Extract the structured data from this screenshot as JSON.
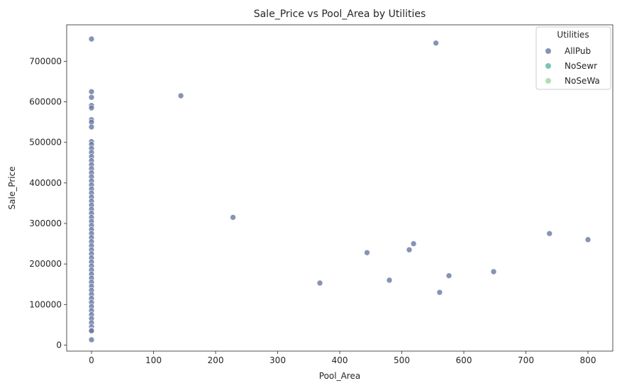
{
  "chart_data": {
    "type": "scatter",
    "title": "Sale_Price vs Pool_Area by Utilities",
    "xlabel": "Pool_Area",
    "ylabel": "Sale_Price",
    "xlim": [
      -40,
      840
    ],
    "ylim": [
      -15000,
      790000
    ],
    "xticks": [
      0,
      100,
      200,
      300,
      400,
      500,
      600,
      700,
      800
    ],
    "yticks": [
      0,
      100000,
      200000,
      300000,
      400000,
      500000,
      600000,
      700000
    ],
    "grid": false,
    "legend": {
      "title": "Utilities",
      "placement": "top-right"
    },
    "series": [
      {
        "name": "AllPub",
        "color": "#6878a3",
        "points": [
          [
            0,
            755000
          ],
          [
            0,
            625000
          ],
          [
            0,
            611000
          ],
          [
            0,
            591000
          ],
          [
            0,
            585000
          ],
          [
            0,
            556000
          ],
          [
            0,
            550000
          ],
          [
            0,
            538000
          ],
          [
            0,
            502000
          ],
          [
            0,
            495000
          ],
          [
            0,
            485000
          ],
          [
            0,
            475000
          ],
          [
            0,
            465000
          ],
          [
            0,
            455000
          ],
          [
            0,
            445000
          ],
          [
            0,
            435000
          ],
          [
            0,
            425000
          ],
          [
            0,
            415000
          ],
          [
            0,
            405000
          ],
          [
            0,
            395000
          ],
          [
            0,
            385000
          ],
          [
            0,
            375000
          ],
          [
            0,
            365000
          ],
          [
            0,
            355000
          ],
          [
            0,
            345000
          ],
          [
            0,
            335000
          ],
          [
            0,
            325000
          ],
          [
            0,
            315000
          ],
          [
            0,
            305000
          ],
          [
            0,
            295000
          ],
          [
            0,
            285000
          ],
          [
            0,
            275000
          ],
          [
            0,
            265000
          ],
          [
            0,
            255000
          ],
          [
            0,
            245000
          ],
          [
            0,
            235000
          ],
          [
            0,
            225000
          ],
          [
            0,
            215000
          ],
          [
            0,
            205000
          ],
          [
            0,
            195000
          ],
          [
            0,
            185000
          ],
          [
            0,
            175000
          ],
          [
            0,
            165000
          ],
          [
            0,
            155000
          ],
          [
            0,
            145000
          ],
          [
            0,
            135000
          ],
          [
            0,
            125000
          ],
          [
            0,
            115000
          ],
          [
            0,
            105000
          ],
          [
            0,
            95000
          ],
          [
            0,
            85000
          ],
          [
            0,
            75000
          ],
          [
            0,
            65000
          ],
          [
            0,
            55000
          ],
          [
            0,
            45000
          ],
          [
            0,
            37000
          ],
          [
            0,
            35000
          ],
          [
            0,
            13000
          ],
          [
            144,
            615000
          ],
          [
            228,
            315000
          ],
          [
            368,
            153000
          ],
          [
            444,
            228000
          ],
          [
            480,
            160000
          ],
          [
            512,
            235000
          ],
          [
            519,
            250000
          ],
          [
            555,
            745000
          ],
          [
            561,
            130000
          ],
          [
            576,
            171000
          ],
          [
            648,
            181000
          ],
          [
            738,
            275000
          ],
          [
            800,
            260000
          ]
        ]
      },
      {
        "name": "NoSewr",
        "color": "#5bb7a2",
        "points": []
      },
      {
        "name": "NoSeWa",
        "color": "#9cd79a",
        "points": []
      }
    ]
  }
}
